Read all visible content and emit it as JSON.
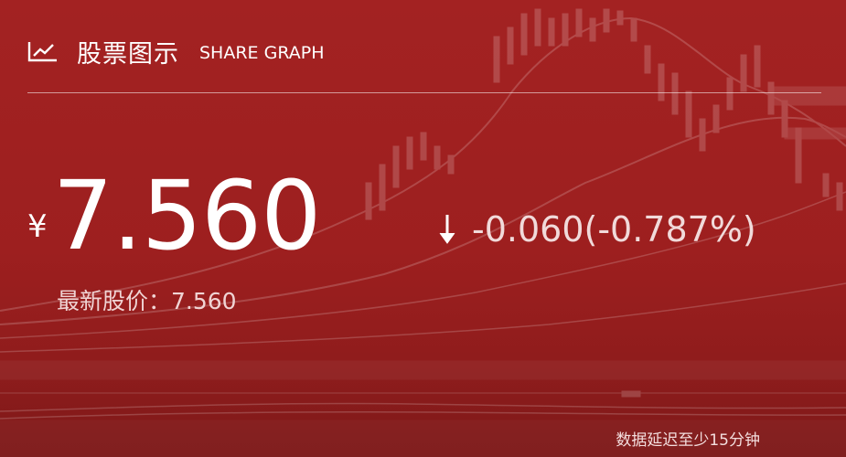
{
  "header": {
    "title_cn": "股票图示",
    "title_en": "SHARE GRAPH",
    "icon": "line-chart-icon"
  },
  "quote": {
    "currency": "¥",
    "price": "7.560",
    "direction": "down",
    "change_text": "-0.060(-0.787%)",
    "latest_label": "最新股价：7.560"
  },
  "footer": {
    "delay_note": "数据延迟至少15分钟"
  },
  "colors": {
    "background": "#9b1f1f",
    "text": "#ffffff",
    "muted_text": "#f0d4d4"
  }
}
